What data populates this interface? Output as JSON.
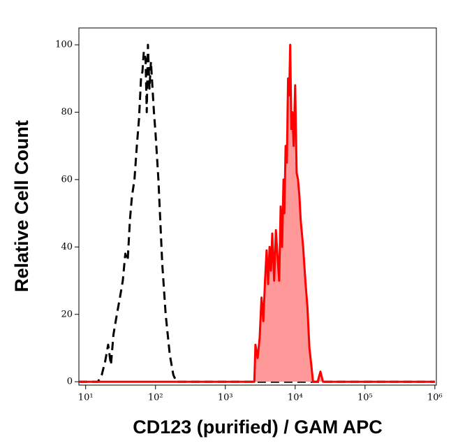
{
  "chart_data": {
    "type": "histogram-overlay",
    "x_label": "CD123 (purified) / GAM APC",
    "y_label": "Relative Cell Count",
    "x_scale": "log",
    "xlim": [
      8,
      1050000
    ],
    "ylim": [
      -1,
      105
    ],
    "xticks": [
      {
        "value": 10,
        "label": "10¹"
      },
      {
        "value": 100,
        "label": "10²"
      },
      {
        "value": 1000,
        "label": "10³"
      },
      {
        "value": 10000,
        "label": "10⁴"
      },
      {
        "value": 100000,
        "label": "10⁵"
      },
      {
        "value": 1000000,
        "label": "10⁶"
      }
    ],
    "yticks": [
      0,
      20,
      40,
      60,
      80,
      100
    ],
    "series": [
      {
        "color": "#000000",
        "line_style": "dashed",
        "filled": false,
        "x": [
          8,
          15,
          17,
          19,
          21,
          23,
          25,
          28,
          31,
          34,
          37,
          40,
          43,
          46,
          50,
          54,
          58,
          62,
          65,
          68,
          72,
          75,
          78,
          82,
          86,
          90,
          95,
          100,
          110,
          125,
          140,
          160,
          180,
          200,
          1000000
        ],
        "values": [
          0,
          0,
          2,
          6,
          11,
          5,
          14,
          20,
          25,
          30,
          38,
          36,
          48,
          55,
          60,
          70,
          78,
          90,
          92,
          98,
          96,
          80,
          100,
          87,
          95,
          88,
          80,
          74,
          60,
          35,
          20,
          8,
          2,
          0,
          0
        ]
      },
      {
        "color": "#ff0000",
        "fill_color": "#ff9999",
        "line_style": "solid",
        "filled": true,
        "x": [
          8,
          2600,
          2700,
          2900,
          3100,
          3300,
          3500,
          3700,
          3900,
          4100,
          4300,
          4500,
          4700,
          5000,
          5300,
          5600,
          5900,
          6200,
          6500,
          6800,
          7000,
          7300,
          7600,
          7900,
          8200,
          8500,
          8800,
          9100,
          9500,
          10000,
          10500,
          11000,
          11500,
          12000,
          13000,
          14000,
          15000,
          16000,
          17000,
          18000,
          21000,
          23000,
          25000,
          1000000
        ],
        "values": [
          0,
          0,
          11,
          7,
          13,
          25,
          18,
          30,
          39,
          29,
          40,
          33,
          44,
          30,
          45,
          37,
          30,
          52,
          40,
          60,
          50,
          70,
          65,
          90,
          85,
          100,
          75,
          80,
          70,
          88,
          62,
          60,
          55,
          48,
          40,
          30,
          22,
          10,
          5,
          0,
          0,
          3,
          0,
          0
        ]
      }
    ]
  }
}
